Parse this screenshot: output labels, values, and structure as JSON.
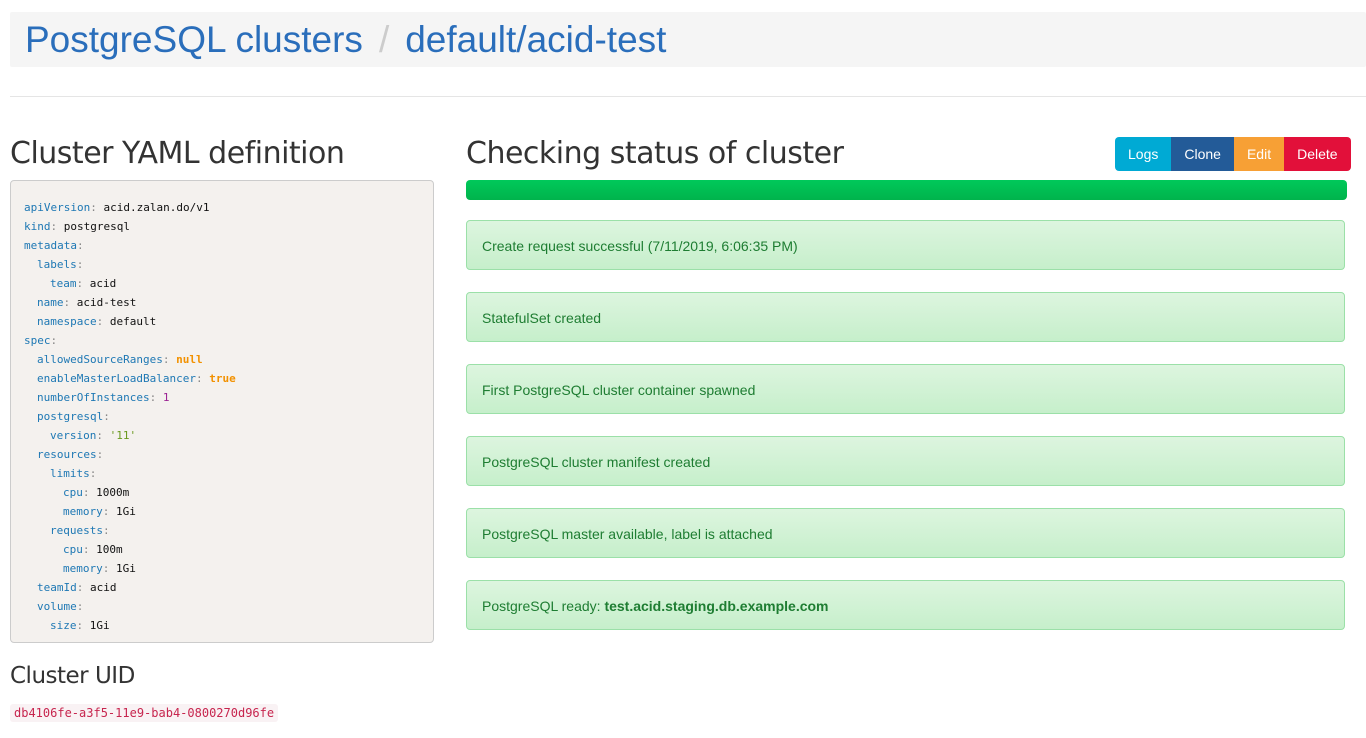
{
  "breadcrumb": {
    "root": "PostgreSQL clusters",
    "separator": "/",
    "current": "default/acid-test"
  },
  "yaml_title": "Cluster YAML definition",
  "yaml_lines": [
    {
      "indent": 0,
      "key": "apiVersion",
      "value": "acid.zalan.do/v1",
      "type": "v"
    },
    {
      "indent": 0,
      "key": "kind",
      "value": "postgresql",
      "type": "v"
    },
    {
      "indent": 0,
      "key": "metadata",
      "value": "",
      "type": "v"
    },
    {
      "indent": 1,
      "key": "labels",
      "value": "",
      "type": "v"
    },
    {
      "indent": 2,
      "key": "team",
      "value": "acid",
      "type": "v"
    },
    {
      "indent": 1,
      "key": "name",
      "value": "acid-test",
      "type": "v"
    },
    {
      "indent": 1,
      "key": "namespace",
      "value": "default",
      "type": "v"
    },
    {
      "indent": 0,
      "key": "spec",
      "value": "",
      "type": "v"
    },
    {
      "indent": 1,
      "key": "allowedSourceRanges",
      "value": "null",
      "type": "b"
    },
    {
      "indent": 1,
      "key": "enableMasterLoadBalancer",
      "value": "true",
      "type": "b"
    },
    {
      "indent": 1,
      "key": "numberOfInstances",
      "value": "1",
      "type": "n"
    },
    {
      "indent": 1,
      "key": "postgresql",
      "value": "",
      "type": "v"
    },
    {
      "indent": 2,
      "key": "version",
      "value": "'11'",
      "type": "s"
    },
    {
      "indent": 1,
      "key": "resources",
      "value": "",
      "type": "v"
    },
    {
      "indent": 2,
      "key": "limits",
      "value": "",
      "type": "v"
    },
    {
      "indent": 3,
      "key": "cpu",
      "value": "1000m",
      "type": "v"
    },
    {
      "indent": 3,
      "key": "memory",
      "value": "1Gi",
      "type": "v"
    },
    {
      "indent": 2,
      "key": "requests",
      "value": "",
      "type": "v"
    },
    {
      "indent": 3,
      "key": "cpu",
      "value": "100m",
      "type": "v"
    },
    {
      "indent": 3,
      "key": "memory",
      "value": "1Gi",
      "type": "v"
    },
    {
      "indent": 1,
      "key": "teamId",
      "value": "acid",
      "type": "v"
    },
    {
      "indent": 1,
      "key": "volume",
      "value": "",
      "type": "v"
    },
    {
      "indent": 2,
      "key": "size",
      "value": "1Gi",
      "type": "v"
    }
  ],
  "uid_title": "Cluster UID",
  "uid": "db4106fe-a3f5-11e9-bab4-0800270d96fe",
  "status_title": "Checking status of cluster",
  "buttons": [
    {
      "label": "Logs",
      "color": "#00aad4"
    },
    {
      "label": "Clone",
      "color": "#235b98"
    },
    {
      "label": "Edit",
      "color": "#f7a035"
    },
    {
      "label": "Delete",
      "color": "#e2103a"
    }
  ],
  "progress": 100,
  "progress_color": "#00bf52",
  "status_messages": [
    {
      "text": "Create request successful (7/11/2019, 6:06:35 PM)",
      "bold": ""
    },
    {
      "text": "StatefulSet created",
      "bold": ""
    },
    {
      "text": "First PostgreSQL cluster container spawned",
      "bold": ""
    },
    {
      "text": "PostgreSQL cluster manifest created",
      "bold": ""
    },
    {
      "text": "PostgreSQL master available, label is attached",
      "bold": ""
    },
    {
      "text": "PostgreSQL ready: ",
      "bold": "test.acid.staging.db.example.com"
    }
  ]
}
